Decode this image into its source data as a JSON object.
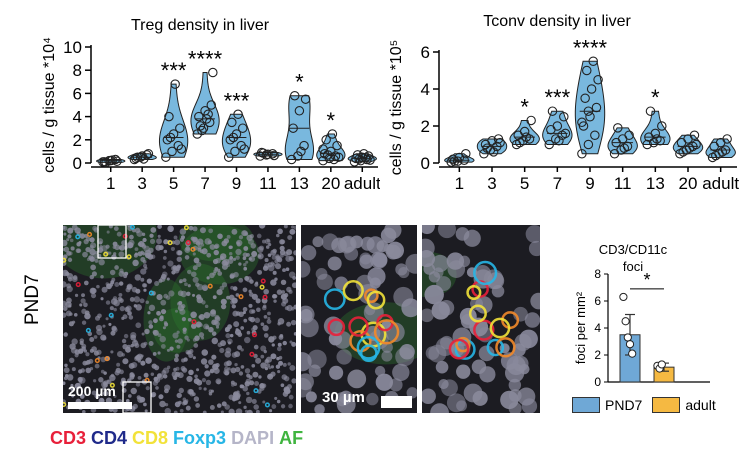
{
  "chart_data": [
    {
      "type": "violin",
      "title": "Treg density in liver",
      "ylabel": "cells / g tissue *10⁴",
      "ylim": [
        0,
        10
      ],
      "yticks": [
        0,
        2,
        4,
        6,
        8,
        10
      ],
      "categories": [
        "1",
        "3",
        "5",
        "7",
        "9",
        "11",
        "13",
        "20",
        "adult"
      ],
      "significance": [
        "",
        "",
        "***",
        "****",
        "***",
        "",
        "*",
        "*",
        ""
      ],
      "fill_color": "#79b8de",
      "points": [
        [
          0.1,
          0.2,
          0.3,
          0.1,
          0.2,
          0.15,
          0.05,
          0.25
        ],
        [
          0.3,
          0.5,
          0.7,
          0.4,
          0.6,
          0.8,
          0.5,
          0.35
        ],
        [
          0.5,
          1.0,
          1.5,
          2.0,
          2.5,
          3.0,
          4.0,
          6.8,
          1.2,
          2.2
        ],
        [
          2.5,
          3.0,
          3.5,
          4.0,
          4.5,
          5.0,
          3.2,
          3.8,
          7.8,
          2.8,
          4.2
        ],
        [
          0.5,
          1.0,
          1.5,
          2.0,
          2.5,
          3.0,
          3.5,
          4.2,
          1.2,
          2.2
        ],
        [
          0.6,
          0.7,
          0.8,
          0.9,
          0.75,
          0.65,
          0.85
        ],
        [
          0.3,
          0.6,
          1.5,
          3.0,
          4.5,
          5.5,
          5.8,
          1.0
        ],
        [
          0.2,
          0.4,
          0.6,
          0.8,
          1.0,
          1.5,
          2.0,
          2.5,
          0.5,
          0.7,
          0.3,
          1.2
        ],
        [
          0.1,
          0.2,
          0.3,
          0.4,
          0.5,
          0.6,
          0.7,
          0.8,
          0.25,
          0.35,
          0.45
        ]
      ]
    },
    {
      "type": "violin",
      "title": "Tconv density in liver",
      "ylabel": "cells / g tissue *10⁵",
      "ylim": [
        0,
        6
      ],
      "yticks": [
        0,
        2,
        4,
        6
      ],
      "categories": [
        "1",
        "3",
        "5",
        "7",
        "9",
        "11",
        "13",
        "20",
        "adult"
      ],
      "significance": [
        "",
        "",
        "*",
        "***",
        "****",
        "",
        "*",
        "",
        ""
      ],
      "fill_color": "#79b8de",
      "points": [
        [
          0.05,
          0.1,
          0.15,
          0.2,
          0.3,
          0.5,
          0.1
        ],
        [
          0.5,
          0.7,
          0.9,
          1.0,
          1.2,
          1.3,
          0.8,
          0.6,
          1.1
        ],
        [
          1.0,
          1.2,
          1.3,
          1.5,
          1.7,
          2.3,
          1.1,
          1.4
        ],
        [
          1.0,
          1.3,
          1.5,
          1.8,
          2.0,
          2.5,
          2.8,
          1.2,
          1.6
        ],
        [
          0.5,
          1.0,
          1.5,
          2.0,
          2.5,
          3.0,
          3.5,
          4.0,
          4.5,
          5.0,
          5.5,
          2.2,
          2.8
        ],
        [
          0.5,
          0.7,
          0.9,
          1.1,
          1.3,
          1.5,
          1.9,
          0.8
        ],
        [
          1.0,
          1.1,
          1.2,
          1.4,
          1.6,
          2.0,
          2.8,
          1.3
        ],
        [
          0.5,
          0.7,
          0.9,
          1.1,
          1.3,
          1.5,
          0.6,
          0.8,
          1.0
        ],
        [
          0.3,
          0.5,
          0.7,
          0.9,
          1.1,
          1.3,
          0.4,
          0.6
        ]
      ]
    },
    {
      "type": "bar",
      "title": "CD3/CD11c\nfoci",
      "title_lines": [
        "CD3/CD11c",
        "foci"
      ],
      "ylabel": "foci per mm²",
      "ylim": [
        0,
        8
      ],
      "yticks": [
        0,
        2,
        4,
        6,
        8
      ],
      "categories": [
        "PND7",
        "adult"
      ],
      "values": [
        3.5,
        1.1
      ],
      "errors": [
        1.5,
        0.3
      ],
      "colors": [
        "#6fa8d6",
        "#f5b942"
      ],
      "points": [
        [
          6.3,
          4.5,
          3.3,
          2.8,
          2.1
        ],
        [
          1.2,
          1.0,
          1.3
        ]
      ],
      "significance": "*",
      "legend": [
        "PND7",
        "adult"
      ]
    }
  ],
  "micrograph": {
    "sample_label": "PND7",
    "scalebar_overview": "200 µm",
    "scalebar_zoom": "30 µm",
    "channels": [
      {
        "name": "CD3",
        "color": "#e8203a"
      },
      {
        "name": "CD4",
        "color": "#1f2a8a"
      },
      {
        "name": "CD8",
        "color": "#f2e23a"
      },
      {
        "name": "Foxp3",
        "color": "#27b6e6"
      },
      {
        "name": "DAPI",
        "color": "#b5b5c8"
      },
      {
        "name": "AF",
        "color": "#3fb43f"
      }
    ]
  }
}
